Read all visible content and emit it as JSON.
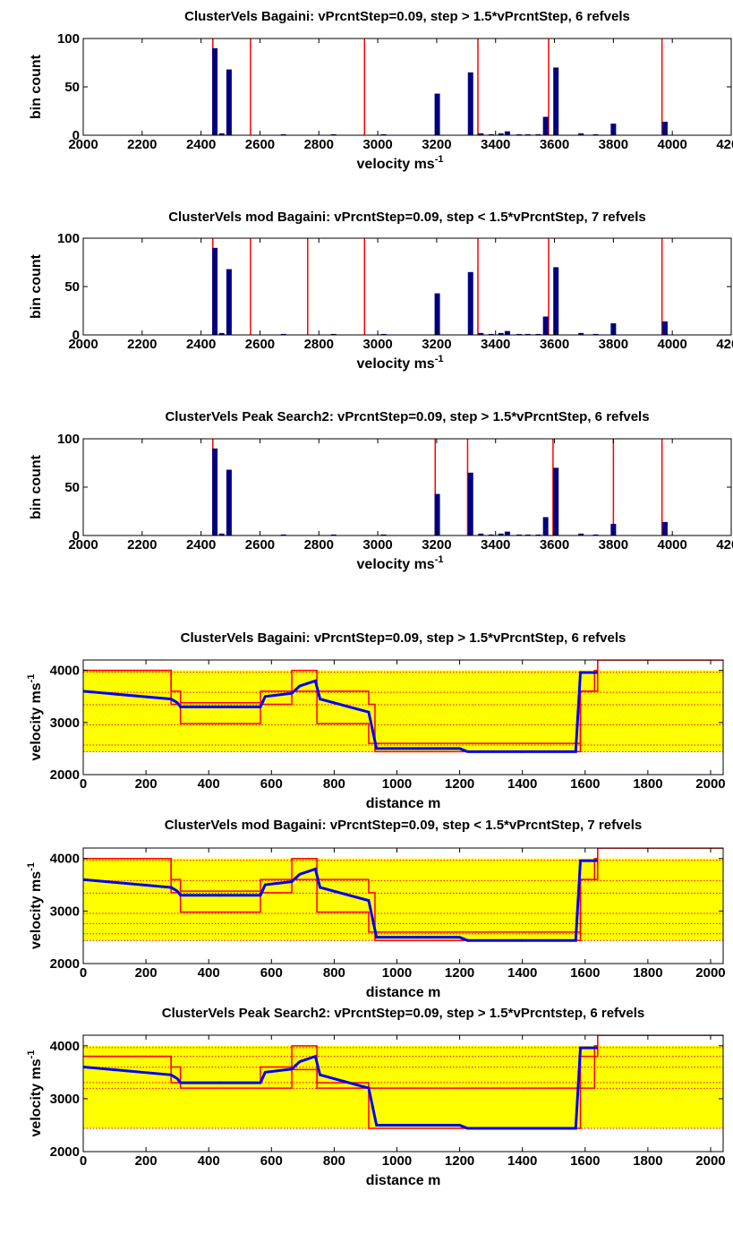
{
  "colors": {
    "bar": "#000080",
    "refline": "#ff0000",
    "fill": "#ffff00",
    "track": "#0000ff",
    "axis": "#000000",
    "background": "#ffffff"
  },
  "chart_data": [
    {
      "type": "bar",
      "title": "ClusterVels Bagaini: vPrcntStep=0.09, step > 1.5*vPrcntStep, 6 refvels",
      "xlabel": "velocity ms",
      "xlabel_sup": "-1",
      "ylabel": "bin count",
      "xlim": [
        2000,
        4200
      ],
      "ylim": [
        0,
        100
      ],
      "xticks": [
        "2000",
        "2200",
        "2400",
        "2600",
        "2800",
        "3000",
        "3200",
        "3400",
        "3600",
        "3800",
        "4000",
        "4200"
      ],
      "yticks": [
        "0",
        "50",
        "100"
      ],
      "bins": [
        {
          "x": 2447,
          "y": 90
        },
        {
          "x": 2470,
          "y": 2
        },
        {
          "x": 2495,
          "y": 68
        },
        {
          "x": 2680,
          "y": 1
        },
        {
          "x": 2850,
          "y": 1
        },
        {
          "x": 3020,
          "y": 1
        },
        {
          "x": 3202,
          "y": 43
        },
        {
          "x": 3315,
          "y": 65
        },
        {
          "x": 3350,
          "y": 2
        },
        {
          "x": 3385,
          "y": 1
        },
        {
          "x": 3418,
          "y": 2
        },
        {
          "x": 3440,
          "y": 4
        },
        {
          "x": 3480,
          "y": 1
        },
        {
          "x": 3510,
          "y": 1
        },
        {
          "x": 3545,
          "y": 1
        },
        {
          "x": 3570,
          "y": 19
        },
        {
          "x": 3605,
          "y": 70
        },
        {
          "x": 3690,
          "y": 2
        },
        {
          "x": 3740,
          "y": 1
        },
        {
          "x": 3800,
          "y": 12
        },
        {
          "x": 3975,
          "y": 14
        }
      ],
      "refvels": [
        2440,
        2568,
        2955,
        3340,
        3580,
        3965
      ]
    },
    {
      "type": "bar",
      "title": "ClusterVels mod Bagaini: vPrcntStep=0.09, step < 1.5*vPrcntStep, 7 refvels",
      "xlabel": "velocity ms",
      "xlabel_sup": "-1",
      "ylabel": "bin count",
      "xlim": [
        2000,
        4200
      ],
      "ylim": [
        0,
        100
      ],
      "xticks": [
        "2000",
        "2200",
        "2400",
        "2600",
        "2800",
        "3000",
        "3200",
        "3400",
        "3600",
        "3800",
        "4000",
        "4200"
      ],
      "yticks": [
        "0",
        "50",
        "100"
      ],
      "bins": [
        {
          "x": 2447,
          "y": 90
        },
        {
          "x": 2470,
          "y": 2
        },
        {
          "x": 2495,
          "y": 68
        },
        {
          "x": 2680,
          "y": 1
        },
        {
          "x": 2850,
          "y": 1
        },
        {
          "x": 3020,
          "y": 1
        },
        {
          "x": 3202,
          "y": 43
        },
        {
          "x": 3315,
          "y": 65
        },
        {
          "x": 3350,
          "y": 2
        },
        {
          "x": 3385,
          "y": 1
        },
        {
          "x": 3418,
          "y": 2
        },
        {
          "x": 3440,
          "y": 4
        },
        {
          "x": 3480,
          "y": 1
        },
        {
          "x": 3510,
          "y": 1
        },
        {
          "x": 3545,
          "y": 1
        },
        {
          "x": 3570,
          "y": 19
        },
        {
          "x": 3605,
          "y": 70
        },
        {
          "x": 3690,
          "y": 2
        },
        {
          "x": 3740,
          "y": 1
        },
        {
          "x": 3800,
          "y": 12
        },
        {
          "x": 3975,
          "y": 14
        }
      ],
      "refvels": [
        2440,
        2568,
        2762,
        2955,
        3340,
        3580,
        3965
      ]
    },
    {
      "type": "bar",
      "title": "ClusterVels Peak Search2: vPrcntStep=0.09, step > 1.5*vPrcntStep, 6 refvels",
      "xlabel": "velocity ms",
      "xlabel_sup": "-1",
      "ylabel": "bin count",
      "xlim": [
        2000,
        4200
      ],
      "ylim": [
        0,
        100
      ],
      "xticks": [
        "2000",
        "2200",
        "2400",
        "2600",
        "2800",
        "3000",
        "3200",
        "3400",
        "3600",
        "3800",
        "4000",
        "4200"
      ],
      "yticks": [
        "0",
        "50",
        "100"
      ],
      "bins": [
        {
          "x": 2447,
          "y": 90
        },
        {
          "x": 2470,
          "y": 2
        },
        {
          "x": 2495,
          "y": 68
        },
        {
          "x": 2680,
          "y": 1
        },
        {
          "x": 2850,
          "y": 1
        },
        {
          "x": 3020,
          "y": 1
        },
        {
          "x": 3202,
          "y": 43
        },
        {
          "x": 3315,
          "y": 65
        },
        {
          "x": 3350,
          "y": 2
        },
        {
          "x": 3385,
          "y": 1
        },
        {
          "x": 3418,
          "y": 2
        },
        {
          "x": 3440,
          "y": 4
        },
        {
          "x": 3480,
          "y": 1
        },
        {
          "x": 3510,
          "y": 1
        },
        {
          "x": 3545,
          "y": 1
        },
        {
          "x": 3570,
          "y": 19
        },
        {
          "x": 3605,
          "y": 70
        },
        {
          "x": 3690,
          "y": 2
        },
        {
          "x": 3740,
          "y": 1
        },
        {
          "x": 3800,
          "y": 12
        },
        {
          "x": 3975,
          "y": 14
        }
      ],
      "refvels": [
        2440,
        3195,
        3305,
        3595,
        3800,
        3965
      ]
    },
    {
      "type": "line",
      "title": "ClusterVels Bagaini: vPrcntStep=0.09, step > 1.5*vPrcntStep, 6 refvels",
      "xlabel": "distance m",
      "ylabel": "velocity ms",
      "ylabel_sup": "-1",
      "xlim": [
        0,
        2040
      ],
      "ylim": [
        2000,
        4200
      ],
      "xticks": [
        "0",
        "200",
        "400",
        "600",
        "800",
        "1000",
        "1200",
        "1400",
        "1600",
        "1800",
        "2000"
      ],
      "yticks": [
        "2000",
        "3000",
        "4000"
      ],
      "band": [
        2440,
        4000
      ],
      "refvels": [
        2440,
        2568,
        2955,
        3340,
        3580,
        3965
      ],
      "velocity": {
        "x": [
          0,
          280,
          300,
          310,
          565,
          580,
          665,
          690,
          740,
          755,
          910,
          935,
          1200,
          1225,
          1570,
          1585,
          1640
        ],
        "y": [
          3600,
          3450,
          3380,
          3300,
          3300,
          3500,
          3560,
          3700,
          3800,
          3450,
          3200,
          2500,
          2500,
          2440,
          2440,
          3960,
          3960
        ]
      },
      "upper": {
        "x": [
          0,
          280,
          310,
          565,
          665,
          745,
          910,
          930,
          1575,
          1585,
          1630,
          1640
        ],
        "y": [
          4000,
          3600,
          3380,
          3600,
          4000,
          3600,
          3350,
          2600,
          2600,
          3600,
          3600,
          4200
        ]
      },
      "lower": {
        "x": [
          0,
          280,
          310,
          565,
          665,
          745,
          910,
          930,
          1575,
          1585,
          1630,
          1640
        ],
        "y": [
          4000,
          3350,
          2980,
          3350,
          3600,
          2980,
          2600,
          2440,
          2440,
          3600,
          4000,
          4200
        ]
      }
    },
    {
      "type": "line",
      "title": "ClusterVels mod Bagaini: vPrcntStep=0.09, step < 1.5*vPrcntStep, 7 refvels",
      "xlabel": "distance m",
      "ylabel": "velocity ms",
      "ylabel_sup": "-1",
      "xlim": [
        0,
        2040
      ],
      "ylim": [
        2000,
        4200
      ],
      "xticks": [
        "0",
        "200",
        "400",
        "600",
        "800",
        "1000",
        "1200",
        "1400",
        "1600",
        "1800",
        "2000"
      ],
      "yticks": [
        "2000",
        "3000",
        "4000"
      ],
      "band": [
        2440,
        4000
      ],
      "refvels": [
        2440,
        2568,
        2762,
        2955,
        3340,
        3580,
        3965
      ],
      "velocity": {
        "x": [
          0,
          280,
          300,
          310,
          565,
          580,
          665,
          690,
          740,
          755,
          910,
          935,
          1200,
          1225,
          1570,
          1585,
          1640
        ],
        "y": [
          3600,
          3450,
          3380,
          3300,
          3300,
          3500,
          3560,
          3700,
          3800,
          3450,
          3200,
          2500,
          2500,
          2440,
          2440,
          3960,
          3960
        ]
      },
      "upper": {
        "x": [
          0,
          280,
          310,
          565,
          665,
          745,
          910,
          930,
          1575,
          1585,
          1630,
          1640
        ],
        "y": [
          4000,
          3600,
          3380,
          3600,
          4000,
          3600,
          3350,
          2600,
          2600,
          3600,
          3600,
          4200
        ]
      },
      "lower": {
        "x": [
          0,
          280,
          310,
          565,
          665,
          745,
          910,
          930,
          1575,
          1585,
          1630,
          1640
        ],
        "y": [
          4000,
          3350,
          2980,
          3350,
          3600,
          2980,
          2600,
          2440,
          2440,
          3600,
          4000,
          4200
        ]
      }
    },
    {
      "type": "line",
      "title": "ClusterVels Peak Search2: vPrcntStep=0.09, step > 1.5*vPrcntstep, 6 refvels",
      "xlabel": "distance m",
      "ylabel": "velocity ms",
      "ylabel_sup": "-1",
      "xlim": [
        0,
        2040
      ],
      "ylim": [
        2000,
        4200
      ],
      "xticks": [
        "0",
        "200",
        "400",
        "600",
        "800",
        "1000",
        "1200",
        "1400",
        "1600",
        "1800",
        "2000"
      ],
      "yticks": [
        "2000",
        "3000",
        "4000"
      ],
      "band": [
        2440,
        4000
      ],
      "refvels": [
        2440,
        3195,
        3305,
        3595,
        3800,
        3965
      ],
      "velocity": {
        "x": [
          0,
          280,
          300,
          310,
          565,
          580,
          665,
          690,
          740,
          755,
          910,
          935,
          1200,
          1225,
          1570,
          1585,
          1640
        ],
        "y": [
          3600,
          3450,
          3380,
          3300,
          3300,
          3500,
          3560,
          3700,
          3800,
          3450,
          3200,
          2500,
          2500,
          2440,
          2440,
          3960,
          3960
        ]
      },
      "upper": {
        "x": [
          0,
          280,
          310,
          565,
          665,
          745,
          910,
          925,
          1575,
          1585,
          1630,
          1640
        ],
        "y": [
          3800,
          3600,
          3300,
          3600,
          4000,
          3300,
          3200,
          3200,
          3200,
          3800,
          4000,
          4200
        ]
      },
      "lower": {
        "x": [
          0,
          280,
          310,
          565,
          665,
          745,
          910,
          925,
          1575,
          1585,
          1630,
          1640
        ],
        "y": [
          3800,
          3300,
          3200,
          3200,
          3550,
          3200,
          2440,
          2440,
          2440,
          3200,
          3800,
          4200
        ]
      }
    }
  ]
}
